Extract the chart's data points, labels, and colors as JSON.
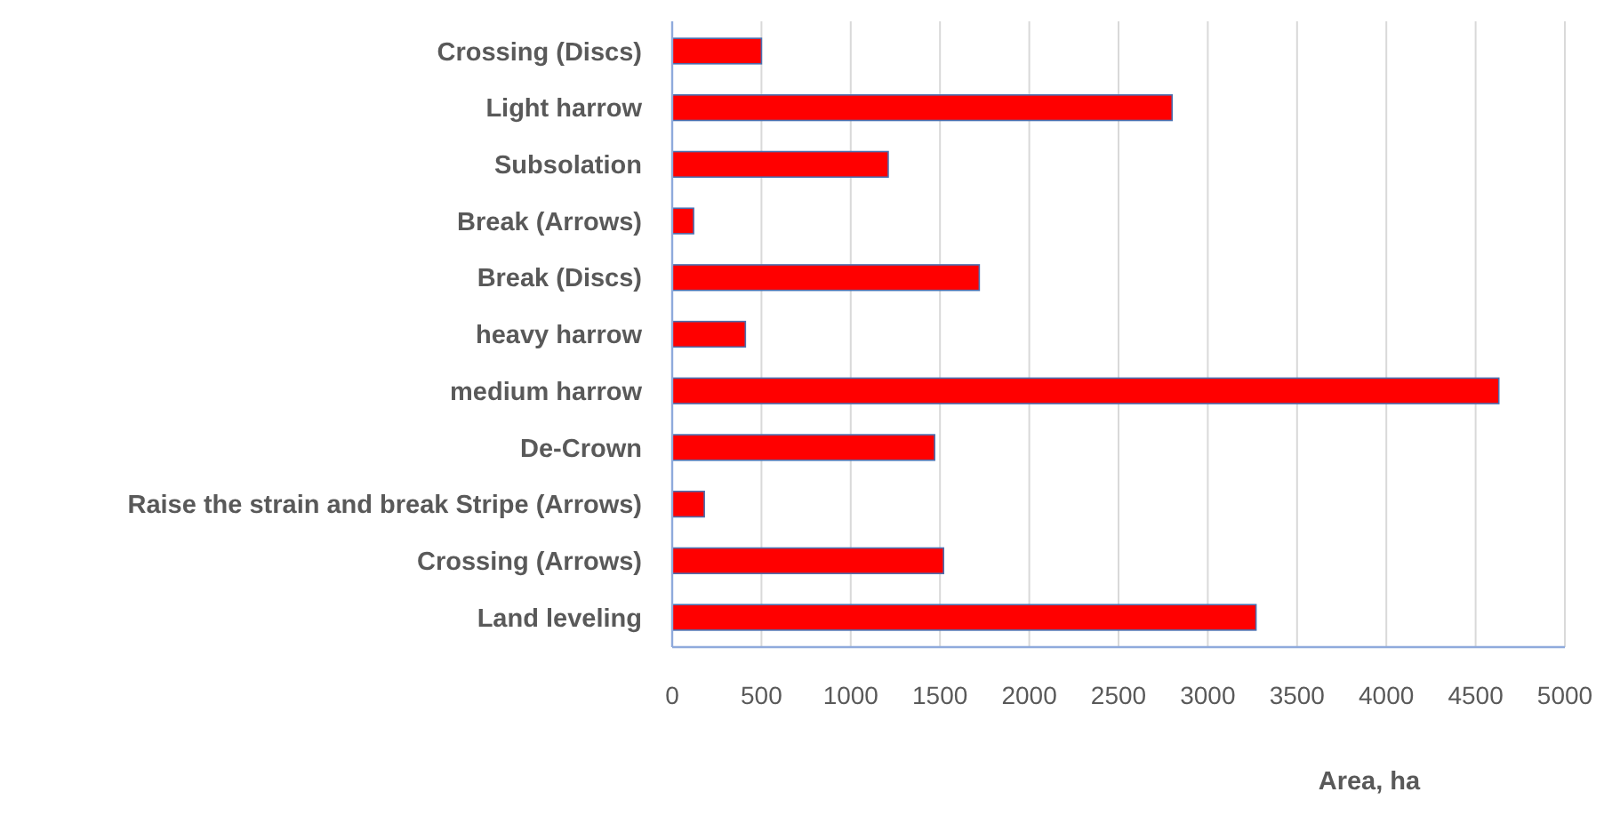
{
  "chart_data": {
    "type": "bar",
    "orientation": "horizontal",
    "xlabel": "Area, ha",
    "categories": [
      "Crossing (Discs)",
      "Light harrow",
      "Subsolation",
      "Break (Arrows)",
      "Break (Discs)",
      "heavy harrow",
      "medium harrow",
      "De-Crown",
      "Raise the strain and break Stripe (Arrows)",
      "Crossing (Arrows)",
      "Land leveling"
    ],
    "values": [
      500,
      2800,
      1210,
      120,
      1720,
      410,
      4630,
      1470,
      180,
      1520,
      3270
    ],
    "color": "#ff0000",
    "xlim": [
      0,
      5000
    ],
    "xticks": [
      0,
      500,
      1000,
      1500,
      2000,
      2500,
      3000,
      3500,
      4000,
      4500,
      5000
    ],
    "grid": "x"
  }
}
